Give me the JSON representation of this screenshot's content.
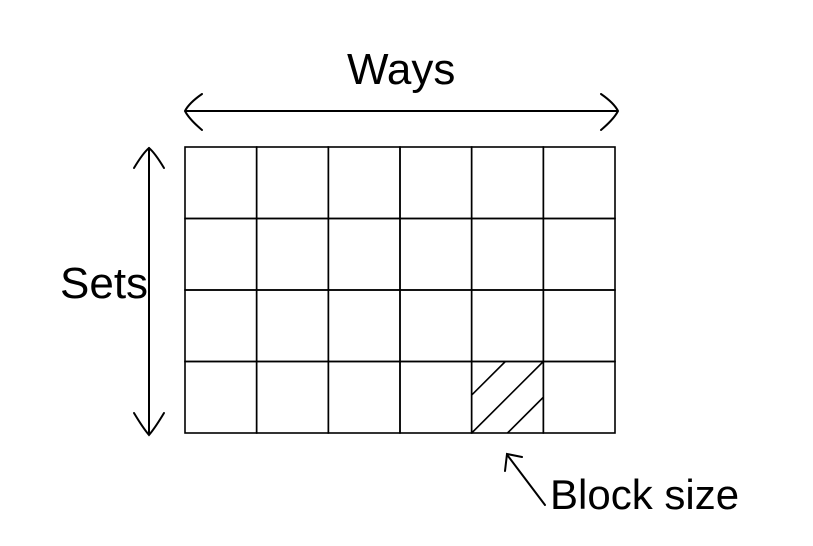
{
  "labels": {
    "ways": "Ways",
    "sets": "Sets",
    "block_size": "Block size"
  },
  "grid": {
    "rows": 4,
    "cols": 6,
    "highlighted_cell": {
      "row": 4,
      "col": 5,
      "pattern": "diagonal-hatch"
    }
  },
  "colors": {
    "stroke": "#000000",
    "background": "#ffffff"
  }
}
